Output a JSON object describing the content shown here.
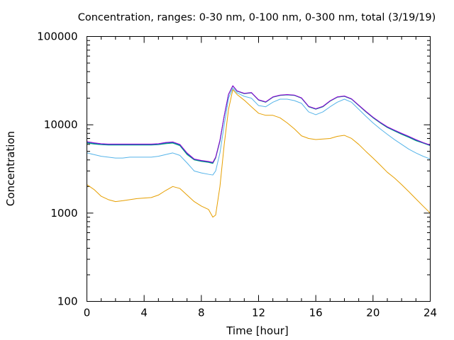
{
  "chart_data": {
    "type": "line",
    "title": "Concentration, ranges: 0-30 nm, 0-100 nm, 0-300 nm, total (3/19/19)",
    "xlabel": "Time [hour]",
    "ylabel": "Concentration",
    "xlim": [
      0,
      24
    ],
    "ylim": [
      100,
      100000
    ],
    "y_scale": "log",
    "grid": false,
    "legend": "none",
    "x_ticks": [
      0,
      4,
      8,
      12,
      16,
      20,
      24
    ],
    "x_tick_labels": [
      "0",
      "4",
      "8",
      "12",
      "16",
      "20",
      "24"
    ],
    "y_ticks": [
      100,
      1000,
      10000,
      100000
    ],
    "y_tick_labels": [
      "100",
      "1000",
      "10000",
      "100000"
    ],
    "series": [
      {
        "color": "#e69f00",
        "x": [
          0,
          0.5,
          1,
          1.5,
          2,
          2.5,
          3,
          3.5,
          4,
          4.5,
          5,
          5.5,
          6,
          6.5,
          7,
          7.5,
          8,
          8.5,
          8.8,
          9,
          9.3,
          9.6,
          9.9,
          10.2,
          10.5,
          11,
          11.5,
          12,
          12.5,
          13,
          13.5,
          14,
          14.5,
          15,
          15.5,
          16,
          16.5,
          17,
          17.5,
          18,
          18.5,
          19,
          19.5,
          20,
          20.5,
          21,
          21.5,
          22,
          22.5,
          23,
          23.5,
          24
        ],
        "y": [
          2100,
          1850,
          1550,
          1420,
          1350,
          1380,
          1420,
          1460,
          1480,
          1500,
          1600,
          1800,
          2000,
          1900,
          1600,
          1350,
          1200,
          1100,
          900,
          950,
          2000,
          6000,
          15000,
          25000,
          22000,
          19000,
          16000,
          13500,
          12800,
          12800,
          12000,
          10500,
          9000,
          7500,
          7000,
          6800,
          6900,
          7000,
          7400,
          7600,
          7000,
          6000,
          5000,
          4200,
          3500,
          2900,
          2500,
          2100,
          1750,
          1450,
          1200,
          1000
        ]
      },
      {
        "color": "#56b4e9",
        "x": [
          0,
          0.5,
          1,
          1.5,
          2,
          2.5,
          3,
          3.5,
          4,
          4.5,
          5,
          5.5,
          6,
          6.5,
          7,
          7.5,
          8,
          8.5,
          8.8,
          9,
          9.3,
          9.6,
          9.9,
          10.2,
          10.5,
          11,
          11.5,
          12,
          12.5,
          13,
          13.5,
          14,
          14.5,
          15,
          15.5,
          16,
          16.5,
          17,
          17.5,
          18,
          18.5,
          19,
          19.5,
          20,
          20.5,
          21,
          21.5,
          22,
          22.5,
          23,
          23.5,
          24
        ],
        "y": [
          4800,
          4600,
          4400,
          4300,
          4200,
          4200,
          4300,
          4300,
          4300,
          4300,
          4400,
          4600,
          4800,
          4500,
          3700,
          3000,
          2850,
          2750,
          2700,
          3000,
          4800,
          10000,
          20000,
          26000,
          23000,
          21000,
          20000,
          16500,
          16000,
          18000,
          19500,
          19500,
          18800,
          17500,
          14000,
          13000,
          14000,
          16000,
          18000,
          19500,
          18000,
          15000,
          12500,
          10500,
          9000,
          7800,
          6800,
          6000,
          5300,
          4800,
          4400,
          4100
        ]
      },
      {
        "color": "#009e73",
        "x": [
          0,
          0.5,
          1,
          1.5,
          2,
          2.5,
          3,
          3.5,
          4,
          4.5,
          5,
          5.5,
          6,
          6.5,
          7,
          7.5,
          8,
          8.5,
          8.8,
          9,
          9.3,
          9.6,
          9.9,
          10.2,
          10.5,
          11,
          11.5,
          12,
          12.5,
          13,
          13.5,
          14,
          14.5,
          15,
          15.5,
          16,
          16.5,
          17,
          17.5,
          18,
          18.5,
          19,
          19.5,
          20,
          20.5,
          21,
          21.5,
          22,
          22.5,
          23,
          23.5,
          24
        ],
        "y": [
          6200,
          6050,
          5950,
          5900,
          5900,
          5900,
          5900,
          5900,
          5900,
          5900,
          5950,
          6100,
          6200,
          5800,
          4600,
          4000,
          3850,
          3750,
          3650,
          4200,
          6500,
          12500,
          22000,
          27500,
          24000,
          22500,
          23000,
          19000,
          18000,
          20500,
          21500,
          21800,
          21500,
          20000,
          16000,
          15000,
          16000,
          18500,
          20500,
          21000,
          19500,
          16500,
          14000,
          12000,
          10500,
          9300,
          8500,
          7800,
          7200,
          6600,
          6200,
          5800
        ]
      },
      {
        "color": "#0072b2",
        "x": [
          0,
          0.5,
          1,
          1.5,
          2,
          2.5,
          3,
          3.5,
          4,
          4.5,
          5,
          5.5,
          6,
          6.5,
          7,
          7.5,
          8,
          8.5,
          8.8,
          9,
          9.3,
          9.6,
          9.9,
          10.2,
          10.5,
          11,
          11.5,
          12,
          12.5,
          13,
          13.5,
          14,
          14.5,
          15,
          15.5,
          16,
          16.5,
          17,
          17.5,
          18,
          18.5,
          19,
          19.5,
          20,
          20.5,
          21,
          21.5,
          22,
          22.5,
          23,
          23.5,
          24
        ],
        "y": [
          6300,
          6150,
          6000,
          5950,
          5950,
          5950,
          5950,
          5950,
          5950,
          5950,
          6000,
          6200,
          6300,
          5900,
          4700,
          4050,
          3900,
          3800,
          3700,
          4250,
          6600,
          12600,
          22100,
          27600,
          24100,
          22600,
          23100,
          19100,
          18100,
          20600,
          21600,
          21900,
          21600,
          20100,
          16100,
          15100,
          16100,
          18600,
          20600,
          21100,
          19600,
          16600,
          14100,
          12100,
          10600,
          9400,
          8600,
          7900,
          7300,
          6700,
          6250,
          5850
        ]
      },
      {
        "color": "#9400d3",
        "x": [
          0,
          0.5,
          1,
          1.5,
          2,
          2.5,
          3,
          3.5,
          4,
          4.5,
          5,
          5.5,
          6,
          6.5,
          7,
          7.5,
          8,
          8.5,
          8.8,
          9,
          9.3,
          9.6,
          9.9,
          10.2,
          10.5,
          11,
          11.5,
          12,
          12.5,
          13,
          13.5,
          14,
          14.5,
          15,
          15.5,
          16,
          16.5,
          17,
          17.5,
          18,
          18.5,
          19,
          19.5,
          20,
          20.5,
          21,
          21.5,
          22,
          22.5,
          23,
          23.5,
          24
        ],
        "y": [
          6450,
          6250,
          6100,
          6050,
          6050,
          6050,
          6050,
          6050,
          6050,
          6050,
          6100,
          6300,
          6400,
          6000,
          4800,
          4100,
          3950,
          3850,
          3750,
          4300,
          6700,
          12700,
          22200,
          27700,
          24200,
          22700,
          23200,
          19200,
          18200,
          20700,
          21700,
          22000,
          21700,
          20200,
          16200,
          15200,
          16200,
          18700,
          20700,
          21200,
          19700,
          16700,
          14200,
          12200,
          10700,
          9500,
          8700,
          8000,
          7400,
          6800,
          6300,
          5900
        ]
      }
    ]
  }
}
